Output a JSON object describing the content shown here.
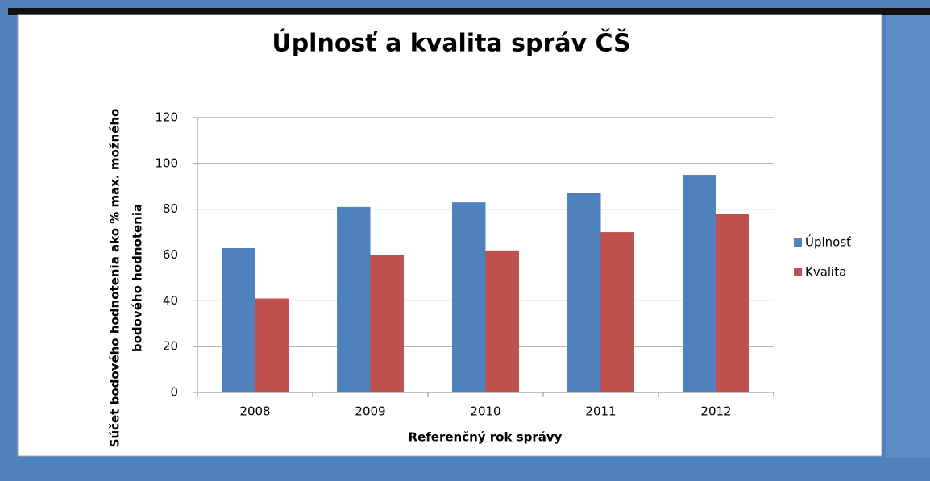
{
  "chart_data": {
    "type": "bar",
    "title": "Úplnosť a kvalita správ ČŠ",
    "xlabel": "Referenčný rok správy",
    "ylabel": [
      "Súčet bodového hodnotenia ako % max. možného",
      "bodového hodnotenia"
    ],
    "categories": [
      "2008",
      "2009",
      "2010",
      "2011",
      "2012"
    ],
    "series": [
      {
        "name": "Úplnosť",
        "color": "#4f81bd",
        "values": [
          63,
          81,
          83,
          87,
          95
        ]
      },
      {
        "name": "Kvalita",
        "color": "#c0504d",
        "values": [
          41,
          60,
          62,
          70,
          78
        ]
      }
    ],
    "ylim": [
      0,
      120
    ],
    "yticks": [
      0,
      20,
      40,
      60,
      80,
      100,
      120
    ],
    "grid": true,
    "legend": "right"
  }
}
